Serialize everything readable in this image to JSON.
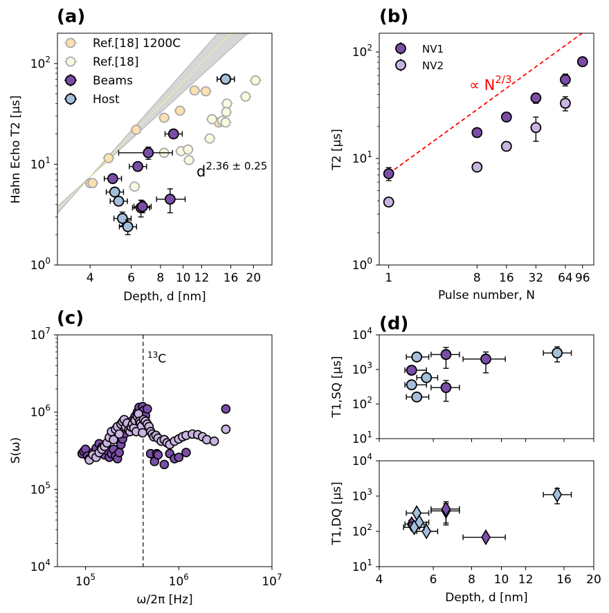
{
  "chart_data": [
    {
      "panel": "a",
      "panel_label": "(a)",
      "type": "scatter",
      "xscale": "log",
      "yscale": "log",
      "xlim": [
        2.9,
        24
      ],
      "ylim": [
        1,
        200
      ],
      "xlabel": "Depth, d [nm]",
      "ylabel": "Hahn Echo T2 [µs]",
      "xtick_values": [
        4,
        6,
        8,
        10,
        12,
        16,
        20
      ],
      "xtick_labels": [
        "4",
        "6",
        "8",
        "10",
        "12",
        "16",
        "20"
      ],
      "ytick_values": [
        1,
        10,
        100
      ],
      "ytick_labels": [
        "10",
        "10",
        "10"
      ],
      "ytick_exponents": [
        "0",
        "1",
        "2"
      ],
      "annotation": {
        "base": "d",
        "exponent": "2.36 ± 0.25"
      },
      "fit": {
        "prefactor": 0.285,
        "exponent": 2.36,
        "band_exponent_low": 2.11,
        "band_exponent_high": 2.61
      },
      "legend": [
        "Ref.[18] 1200C",
        "Ref.[18]",
        "Beams",
        "Host"
      ],
      "series": [
        {
          "name": "Ref.[18] 1200C",
          "color": "#fde0b0",
          "points": [
            [
              4.0,
              6.5
            ],
            [
              4.8,
              11.5
            ],
            [
              6.3,
              22
            ],
            [
              8.3,
              29
            ],
            [
              9.7,
              34
            ],
            [
              11.2,
              54
            ],
            [
              12.5,
              53
            ],
            [
              14.2,
              26
            ],
            [
              4.1,
              6.5
            ]
          ]
        },
        {
          "name": "Ref.[18]",
          "color": "#fafae0",
          "points": [
            [
              6.2,
              6
            ],
            [
              8.3,
              13
            ],
            [
              9.8,
              13.5
            ],
            [
              10.5,
              14
            ],
            [
              10.6,
              11
            ],
            [
              13,
              18
            ],
            [
              13.3,
              28
            ],
            [
              14.7,
              27
            ],
            [
              15.4,
              40
            ],
            [
              15.3,
              33
            ],
            [
              15.2,
              26
            ],
            [
              18.5,
              47
            ],
            [
              20.4,
              68
            ]
          ]
        },
        {
          "name": "Beams",
          "color": "#7a4ea6",
          "points": [
            [
              5.0,
              7.2,
              0.4
            ],
            [
              6.4,
              9.5,
              0.5
            ],
            [
              7.1,
              13,
              1.8
            ],
            [
              9.1,
              20,
              0.6
            ],
            [
              6.6,
              3.7,
              0.7
            ],
            [
              6.7,
              3.8,
              0.5
            ],
            [
              8.8,
              4.5,
              1.2
            ],
            [
              15.2,
              70,
              0.9
            ]
          ]
        },
        {
          "name": "Host",
          "color": "#a3bfdc",
          "points": [
            [
              5.1,
              5.3,
              0.35
            ],
            [
              5.3,
              4.3,
              0.35
            ],
            [
              5.5,
              2.9,
              0.45
            ],
            [
              5.8,
              2.4,
              0.4
            ],
            [
              15.2,
              70,
              0.9
            ]
          ]
        }
      ]
    },
    {
      "panel": "b",
      "panel_label": "(b)",
      "type": "scatter",
      "xscale": "log",
      "yscale": "log",
      "xlim": [
        0.8,
        125
      ],
      "ylim": [
        1,
        150
      ],
      "xlabel": "Pulse number, N",
      "ylabel": "T2 [µs]",
      "xtick_values": [
        1,
        8,
        16,
        32,
        64,
        96
      ],
      "xtick_labels": [
        "1",
        "8",
        "16",
        "32",
        "64",
        "96"
      ],
      "ytick_values": [
        1,
        10,
        100
      ],
      "ytick_labels": [
        "10",
        "10",
        "10"
      ],
      "ytick_exponents": [
        "0",
        "1",
        "2"
      ],
      "annotation": {
        "prefix": "∝ N",
        "exponent": "2/3",
        "color": "#ff0000"
      },
      "fit": {
        "prefactor": 7.2,
        "exponent": 0.6667
      },
      "legend": [
        "NV1",
        "NV2"
      ],
      "series": [
        {
          "name": "NV1",
          "color": "#7a4ea6",
          "points": [
            [
              1,
              7.2,
              1.0
            ],
            [
              8,
              17.5,
              0
            ],
            [
              16,
              24.5,
              0
            ],
            [
              32,
              37,
              4
            ],
            [
              64,
              55,
              7
            ],
            [
              96,
              81,
              0
            ]
          ]
        },
        {
          "name": "NV2",
          "color": "#c8b4e0",
          "points": [
            [
              1,
              3.9,
              0
            ],
            [
              8,
              8.3,
              0
            ],
            [
              16,
              13,
              0
            ],
            [
              32,
              19.5,
              5
            ],
            [
              64,
              33,
              5
            ]
          ]
        }
      ]
    },
    {
      "panel": "c",
      "panel_label": "(c)",
      "type": "scatter",
      "xscale": "log",
      "yscale": "log",
      "xlim": [
        50000,
        10000000
      ],
      "ylim": [
        10000,
        10000000
      ],
      "xlabel": "ω/2π [Hz]",
      "ylabel": "S(ω)",
      "xtick_values": [
        100000,
        1000000,
        10000000
      ],
      "xtick_labels": [
        "10",
        "10",
        "10"
      ],
      "xtick_exponents": [
        "5",
        "6",
        "7"
      ],
      "ytick_values": [
        10000,
        100000,
        1000000,
        10000000
      ],
      "ytick_labels": [
        "10",
        "10",
        "10",
        "10"
      ],
      "ytick_exponents": [
        "4",
        "5",
        "6",
        "7"
      ],
      "vline": {
        "x": 415000,
        "label": "C",
        "label_superscript": "13"
      },
      "series": [
        {
          "name": "NV1",
          "color": "#7a4ea6",
          "points": [
            [
              92000,
              290000
            ],
            [
              96000,
              310000
            ],
            [
              100000,
              330000
            ],
            [
              105000,
              270000
            ],
            [
              110000,
              250000
            ],
            [
              120000,
              300000
            ],
            [
              130000,
              340000
            ],
            [
              140000,
              390000
            ],
            [
              150000,
              350000
            ],
            [
              160000,
              280000
            ],
            [
              170000,
              320000
            ],
            [
              180000,
              260000
            ],
            [
              190000,
              290000
            ],
            [
              200000,
              330000
            ],
            [
              210000,
              270000
            ],
            [
              220000,
              250000
            ],
            [
              230000,
              300000
            ],
            [
              240000,
              380000
            ],
            [
              250000,
              450000
            ],
            [
              265000,
              530000
            ],
            [
              280000,
              620000
            ],
            [
              300000,
              680000
            ],
            [
              320000,
              780000
            ],
            [
              340000,
              880000
            ],
            [
              360000,
              1000000
            ],
            [
              375000,
              1150000
            ],
            [
              390000,
              950000
            ],
            [
              400000,
              800000
            ],
            [
              410000,
              1180000
            ],
            [
              420000,
              1050000
            ],
            [
              440000,
              900000
            ],
            [
              460000,
              1100000
            ],
            [
              500000,
              290000
            ],
            [
              550000,
              230000
            ],
            [
              580000,
              290000
            ],
            [
              600000,
              280000
            ],
            [
              700000,
              210000
            ],
            [
              800000,
              290000
            ],
            [
              900000,
              250000
            ],
            [
              1000000,
              260000
            ],
            [
              1200000,
              300000
            ],
            [
              3200000,
              1100000
            ]
          ]
        },
        {
          "name": "NV2",
          "color": "#c8b4e0",
          "points": [
            [
              110000,
              240000
            ],
            [
              120000,
              280000
            ],
            [
              130000,
              260000
            ],
            [
              140000,
              300000
            ],
            [
              150000,
              330000
            ],
            [
              160000,
              360000
            ],
            [
              170000,
              400000
            ],
            [
              180000,
              470000
            ],
            [
              190000,
              560000
            ],
            [
              200000,
              440000
            ],
            [
              210000,
              600000
            ],
            [
              220000,
              650000
            ],
            [
              230000,
              520000
            ],
            [
              240000,
              700000
            ],
            [
              250000,
              750000
            ],
            [
              260000,
              800000
            ],
            [
              270000,
              640000
            ],
            [
              280000,
              720000
            ],
            [
              290000,
              580000
            ],
            [
              300000,
              560000
            ],
            [
              310000,
              640000
            ],
            [
              320000,
              700000
            ],
            [
              330000,
              620000
            ],
            [
              340000,
              780000
            ],
            [
              350000,
              560000
            ],
            [
              360000,
              880000
            ],
            [
              370000,
              950000
            ],
            [
              380000,
              760000
            ],
            [
              390000,
              720000
            ],
            [
              400000,
              660000
            ],
            [
              410000,
              540000
            ],
            [
              420000,
              800000
            ],
            [
              440000,
              760000
            ],
            [
              460000,
              700000
            ],
            [
              480000,
              650000
            ],
            [
              500000,
              560000
            ],
            [
              520000,
              520000
            ],
            [
              540000,
              480000
            ],
            [
              570000,
              500000
            ],
            [
              600000,
              460000
            ],
            [
              650000,
              420000
            ],
            [
              700000,
              440000
            ],
            [
              750000,
              400000
            ],
            [
              800000,
              380000
            ],
            [
              900000,
              420000
            ],
            [
              1000000,
              450000
            ],
            [
              1100000,
              480000
            ],
            [
              1200000,
              500000
            ],
            [
              1400000,
              520000
            ],
            [
              1600000,
              510000
            ],
            [
              1800000,
              480000
            ],
            [
              2000000,
              440000
            ],
            [
              2400000,
              420000
            ],
            [
              3200000,
              600000
            ]
          ]
        }
      ]
    },
    {
      "panel": "d",
      "panel_label": "(d)",
      "type": "scatter",
      "xscale": "log",
      "yscale": "log",
      "xlim": [
        4,
        20
      ],
      "ylim": [
        10,
        10000
      ],
      "xlabel": "Depth, d [nm]",
      "xtick_values": [
        4,
        6,
        8,
        10,
        12,
        16,
        20
      ],
      "xtick_labels": [
        "4",
        "6",
        "8",
        "10",
        "12",
        "16",
        "20"
      ],
      "ytick_values": [
        10,
        100,
        1000,
        10000
      ],
      "ytick_labels": [
        "10",
        "10",
        "10",
        "10"
      ],
      "ytick_exponents": [
        "1",
        "2",
        "3",
        "4"
      ],
      "subplots": [
        {
          "ylabel": "T1,SQ [µs]",
          "marker": "circle",
          "series": [
            {
              "name": "Beams",
              "color": "#7a4ea6",
              "points": [
                [
                  5.1,
                  950
                ],
                [
                  6.6,
                  2700
                ],
                [
                  6.6,
                  300
                ],
                [
                  8.9,
                  2000
                ]
              ]
            },
            {
              "name": "Host",
              "color": "#a3bfdc",
              "points": [
                [
                  5.3,
                  2300
                ],
                [
                  5.7,
                  580
                ],
                [
                  5.1,
                  360
                ],
                [
                  5.3,
                  160
                ],
                [
                  15.2,
                  3000
                ]
              ]
            }
          ]
        },
        {
          "ylabel": "T1,DQ [µs]",
          "marker": "diamond",
          "series": [
            {
              "name": "Beams",
              "color": "#7a4ea6",
              "points": [
                [
                  5.1,
                  160
                ],
                [
                  6.6,
                  380
                ],
                [
                  6.6,
                  430
                ],
                [
                  8.9,
                  68
                ]
              ]
            },
            {
              "name": "Host",
              "color": "#a3bfdc",
              "points": [
                [
                  5.3,
                  330
                ],
                [
                  5.4,
                  180
                ],
                [
                  5.7,
                  100
                ],
                [
                  5.2,
                  130
                ],
                [
                  15.2,
                  1100
                ]
              ]
            }
          ]
        }
      ]
    }
  ]
}
